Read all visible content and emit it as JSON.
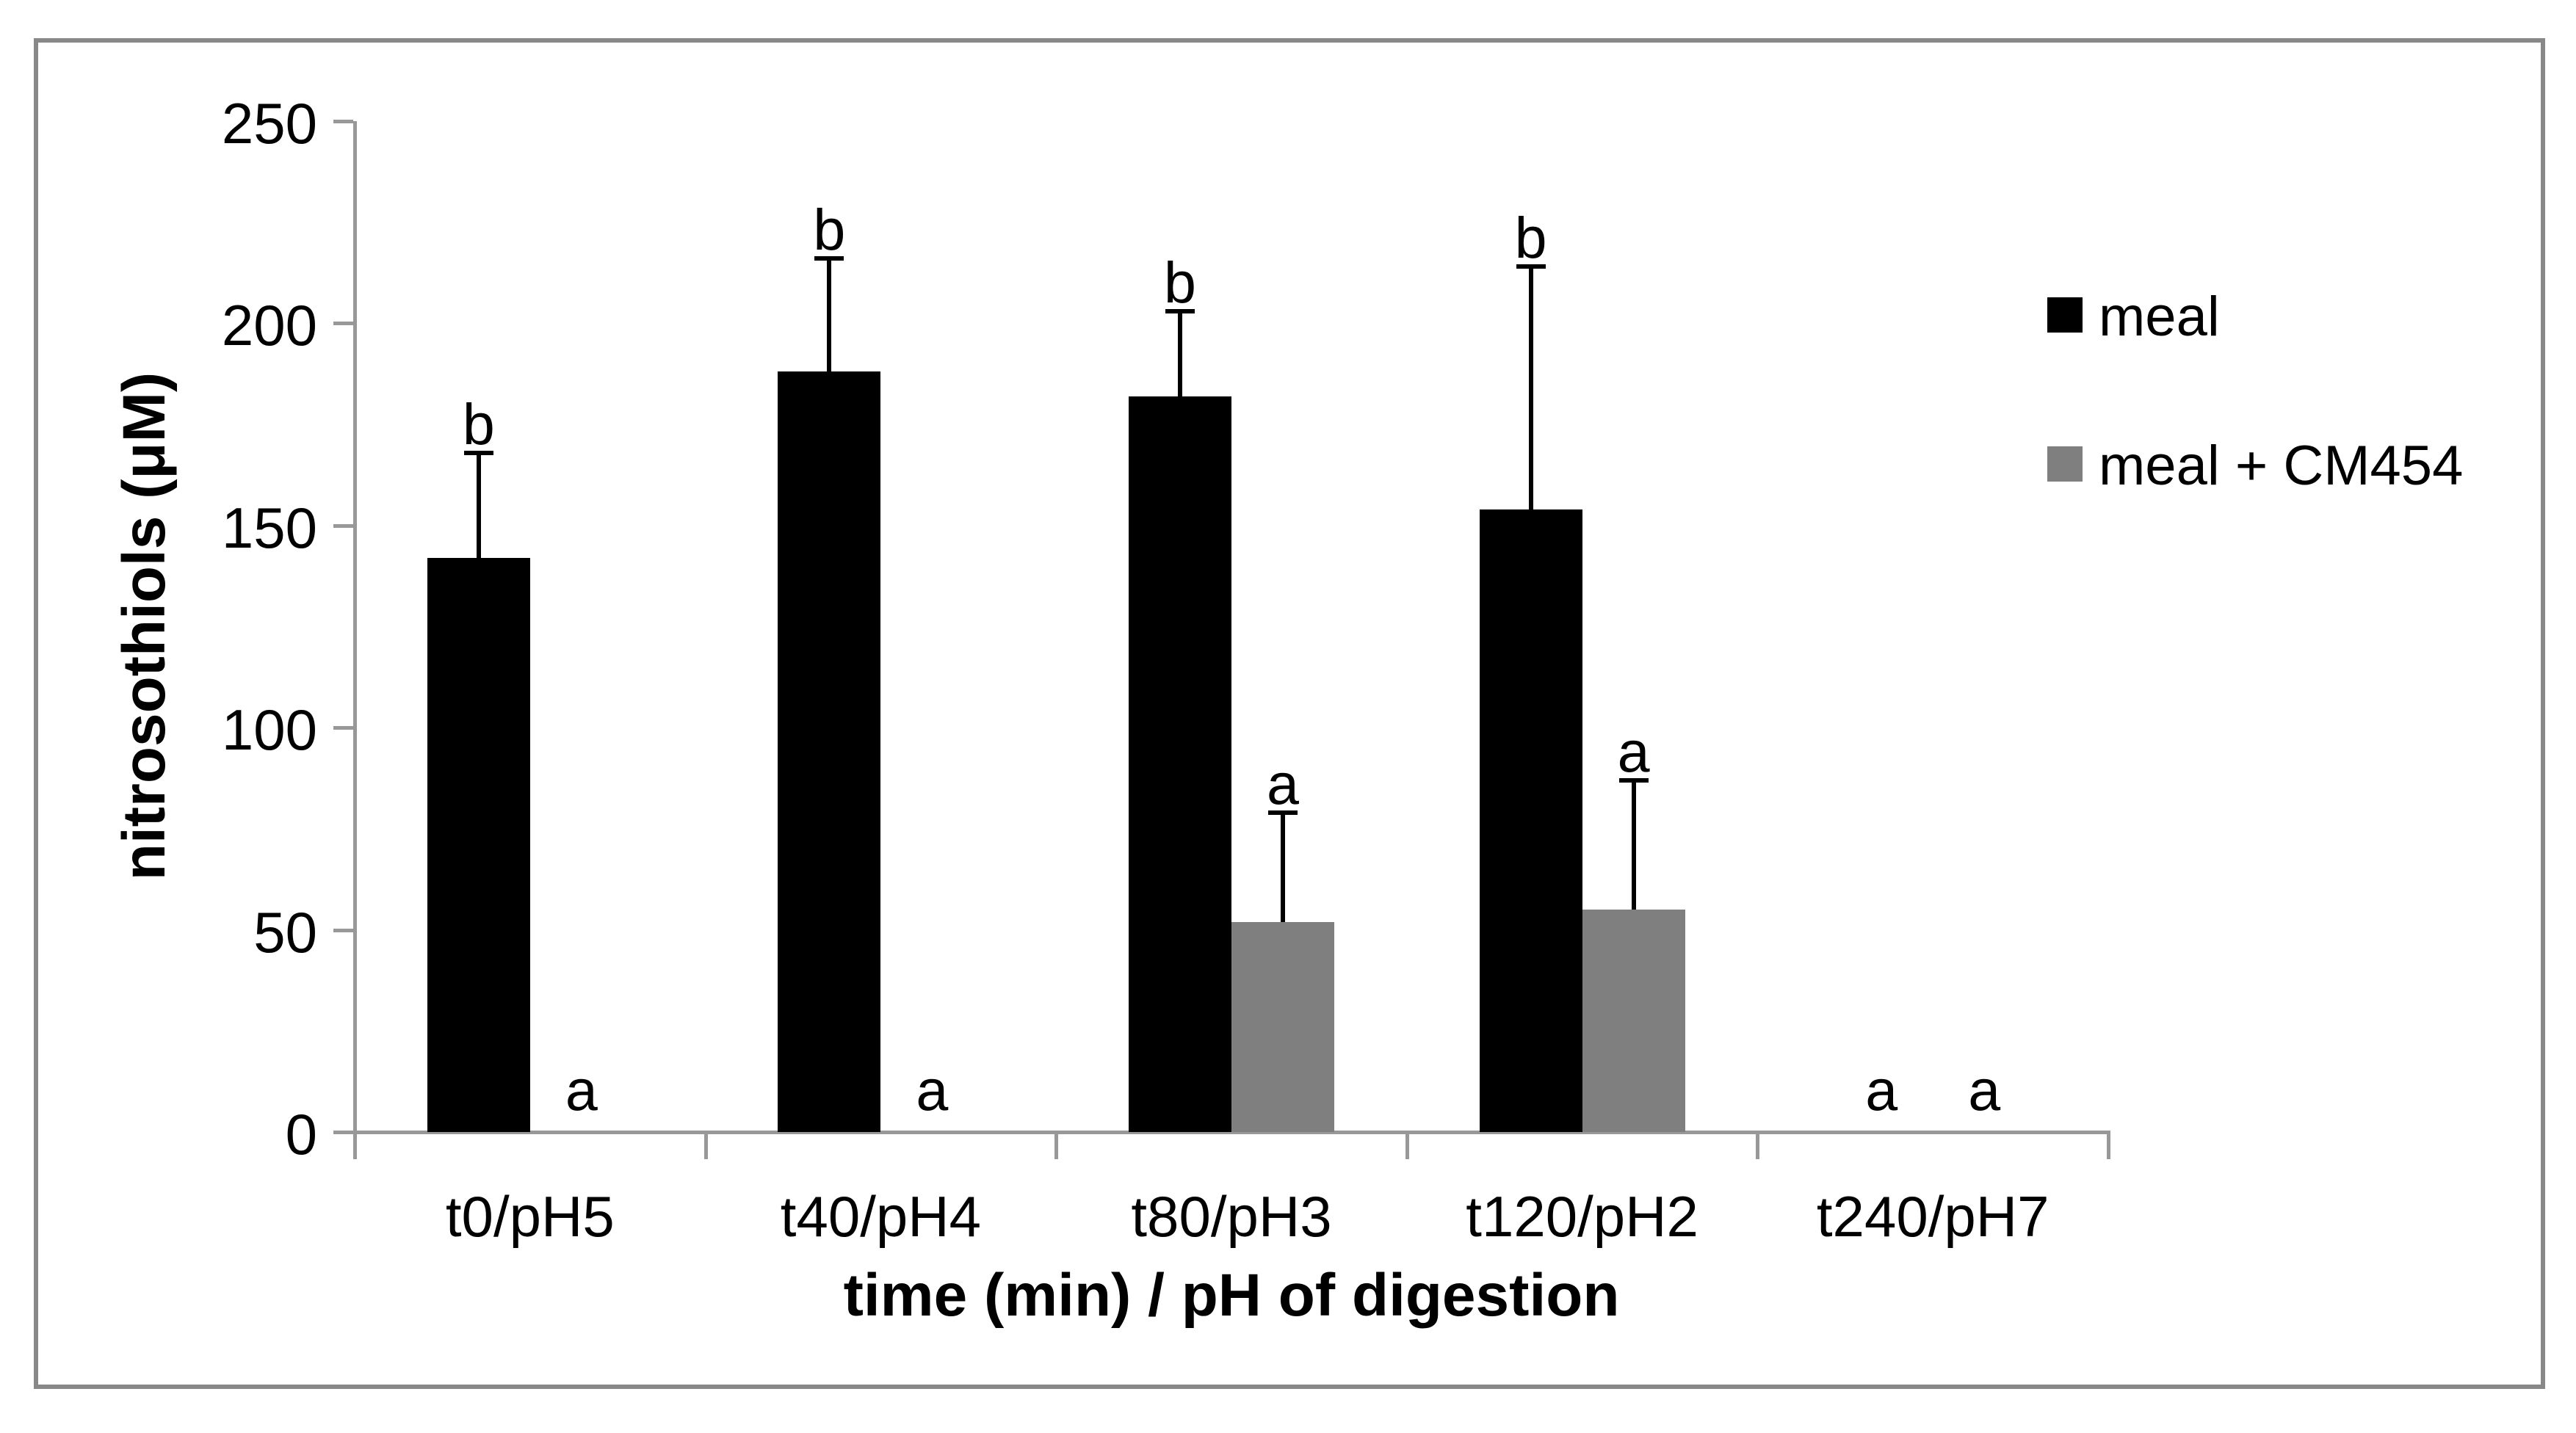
{
  "chart_data": {
    "type": "bar",
    "title": "",
    "categories": [
      "t0/pH5",
      "t40/pH4",
      "t80/pH3",
      "t120/pH2",
      "t240/pH7"
    ],
    "series": [
      {
        "name": "meal",
        "color": "#000000",
        "values": [
          142,
          188,
          182,
          154,
          0
        ],
        "errors_upper": [
          26,
          28,
          21,
          60,
          0
        ],
        "sig_letters": [
          "b",
          "b",
          "b",
          "b",
          "a"
        ]
      },
      {
        "name": "meal + CM454",
        "color": "#7f7f7f",
        "values": [
          0,
          0,
          52,
          55,
          0
        ],
        "errors_upper": [
          0,
          0,
          27,
          32,
          0
        ],
        "sig_letters": [
          "a",
          "a",
          "a",
          "a",
          "a"
        ]
      }
    ],
    "xlabel": "time (min) / pH of digestion",
    "ylabel": "nitrosothiols (μM)",
    "ylim": [
      0,
      250
    ],
    "yticks": [
      0,
      50,
      100,
      150,
      200,
      250
    ],
    "error_direction": "up",
    "grid": false,
    "legend_position": "right"
  },
  "legend": {
    "items": [
      {
        "label": "meal",
        "color": "#000000"
      },
      {
        "label": "meal + CM454",
        "color": "#7f7f7f"
      }
    ]
  },
  "colors": {
    "background": "#ffffff",
    "frame": "#888888",
    "axis": "#989898",
    "text": "#000000"
  }
}
